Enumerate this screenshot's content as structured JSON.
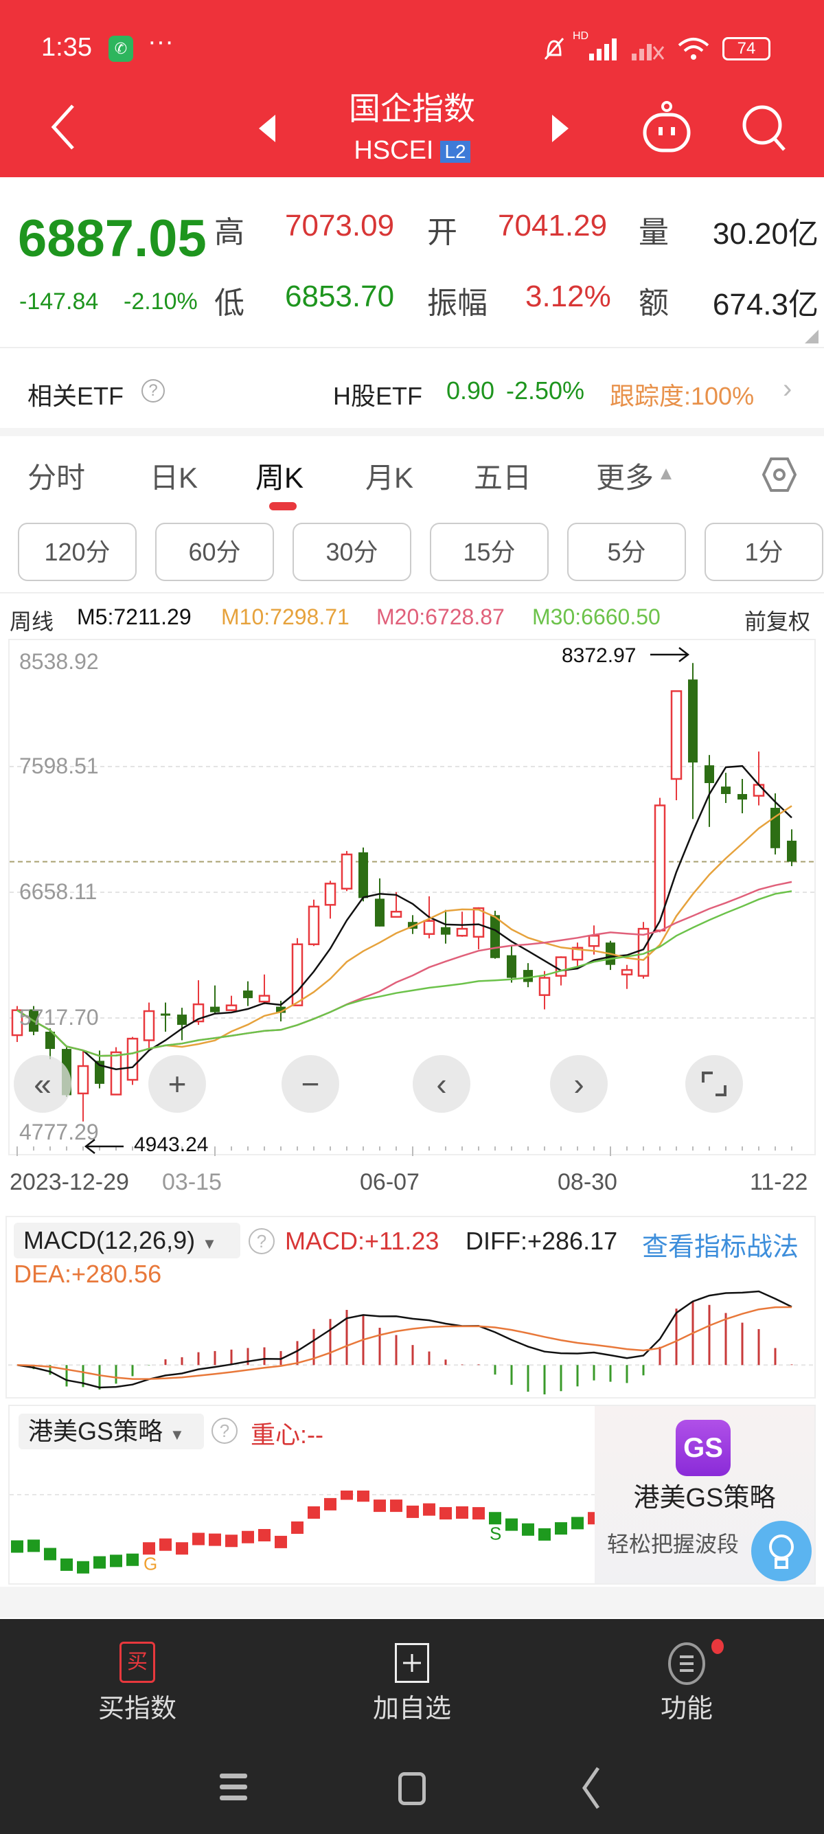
{
  "status": {
    "time": "1:35",
    "battery": "74",
    "network": "HD"
  },
  "header": {
    "title": "国企指数",
    "code": "HSCEI",
    "level": "L2"
  },
  "quote": {
    "price": "6887.05",
    "change": "-147.84",
    "change_pct": "-2.10%",
    "high_label": "高",
    "high": "7073.09",
    "open_label": "开",
    "open": "7041.29",
    "vol_label": "量",
    "vol": "30.20亿",
    "low_label": "低",
    "low": "6853.70",
    "amp_label": "振幅",
    "amp": "3.12%",
    "amt_label": "额",
    "amt": "674.3亿"
  },
  "etf": {
    "label": "相关ETF",
    "name": "H股ETF",
    "price": "0.90",
    "pct": "-2.50%",
    "tracking": "跟踪度:100%"
  },
  "tabs": [
    {
      "label": "分时"
    },
    {
      "label": "日K"
    },
    {
      "label": "周K",
      "active": true
    },
    {
      "label": "月K"
    },
    {
      "label": "五日"
    },
    {
      "label": "更多"
    }
  ],
  "intervals": [
    "120分",
    "60分",
    "30分",
    "15分",
    "5分",
    "1分"
  ],
  "ma_legend": {
    "period": "周线",
    "m5": "M5:7211.29",
    "m10": "M10:7298.71",
    "m20": "M20:6728.87",
    "m30": "M30:6660.50",
    "adjust": "前复权"
  },
  "colors": {
    "up": "#E8383D",
    "down": "#2D6E14",
    "m5": "#111111",
    "m10": "#E6A23C",
    "m20": "#E0607A",
    "m30": "#6CC24A",
    "header": "#EE323A"
  },
  "chart_data": {
    "type": "candlestick",
    "y_ticks": [
      "8538.92",
      "7598.51",
      "6658.11",
      "5717.70",
      "4777.29"
    ],
    "ylim": [
      4777.29,
      8538.92
    ],
    "x_ticks": [
      "2023-12-29",
      "03-15",
      "06-07",
      "08-30",
      "11-22"
    ],
    "max_label": "8372.97",
    "min_label": "4943.24",
    "ohlc": [
      [
        5589,
        5776,
        5807,
        5538
      ],
      [
        5782,
        5615,
        5807,
        5589
      ],
      [
        5615,
        5486,
        5640,
        5409
      ],
      [
        5486,
        5140,
        5499,
        5127
      ],
      [
        5153,
        5358,
        5474,
        4943.24
      ],
      [
        5397,
        5225,
        5474,
        5191
      ],
      [
        5145,
        5461,
        5499,
        5140
      ],
      [
        5255,
        5563,
        5576,
        5217
      ],
      [
        5551,
        5769,
        5833,
        5474
      ],
      [
        5751,
        5735,
        5833,
        5615
      ],
      [
        5743,
        5666,
        5794,
        5551
      ],
      [
        5692,
        5820,
        6000,
        5666
      ],
      [
        5802,
        5761,
        5961,
        5743
      ],
      [
        5776,
        5812,
        5884,
        5769
      ],
      [
        5923,
        5866,
        5992,
        5807
      ],
      [
        5840,
        5884,
        6043,
        5820
      ],
      [
        5802,
        5756,
        5846,
        5692
      ],
      [
        5812,
        6269,
        6315,
        5807
      ],
      [
        6269,
        6551,
        6603,
        6256
      ],
      [
        6564,
        6723,
        6744,
        6461
      ],
      [
        6685,
        6941,
        6967,
        6667
      ],
      [
        6957,
        6615,
        6993,
        6590
      ],
      [
        6610,
        6402,
        6762,
        6402
      ],
      [
        6474,
        6513,
        6659,
        6469
      ],
      [
        6436,
        6385,
        6487,
        6346
      ],
      [
        6346,
        6444,
        6628,
        6313
      ],
      [
        6397,
        6341,
        6526,
        6274
      ],
      [
        6333,
        6385,
        6513,
        6325
      ],
      [
        6325,
        6539,
        6546,
        6231
      ],
      [
        6487,
        6166,
        6520,
        6161
      ],
      [
        6187,
        6018,
        6256,
        5982
      ],
      [
        6077,
        5987,
        6128,
        5948
      ],
      [
        5889,
        6018,
        6069,
        5782
      ],
      [
        6033,
        6172,
        6179,
        5961
      ],
      [
        6154,
        6243,
        6282,
        6090
      ],
      [
        6256,
        6333,
        6410,
        6192
      ],
      [
        6282,
        6115,
        6295,
        6077
      ],
      [
        6043,
        6077,
        6115,
        5935
      ],
      [
        6033,
        6385,
        6436,
        6012
      ],
      [
        6372,
        7308,
        7365,
        6359
      ],
      [
        7506,
        8163,
        8168,
        7347
      ],
      [
        8250,
        7629,
        8372.97,
        7206
      ],
      [
        7608,
        7475,
        7685,
        7147
      ],
      [
        7449,
        7393,
        7552,
        7326
      ],
      [
        7393,
        7352,
        7506,
        7249
      ],
      [
        7380,
        7462,
        7711,
        7308
      ],
      [
        7290,
        6988,
        7398,
        6941
      ],
      [
        7044,
        6887.05,
        7129,
        6853.7
      ]
    ],
    "last_price": 6887.05
  },
  "macd": {
    "selector": "MACD(12,26,9)",
    "macd": "MACD:+11.23",
    "diff": "DIFF:+286.17",
    "dea": "DEA:+280.56",
    "link": "查看指标战法"
  },
  "gs": {
    "selector": "港美GS策略",
    "center": "重心:--",
    "promo_title": "港美GS策略",
    "promo_sub": "轻松把握波段",
    "logo": "GS",
    "levels": [
      90,
      92,
      70,
      42,
      35,
      48,
      52,
      55,
      85,
      95,
      85,
      110,
      108,
      105,
      115,
      120,
      102,
      140,
      180,
      202,
      230,
      225,
      198,
      198,
      182,
      188,
      178,
      180,
      178,
      165,
      148,
      135,
      122,
      138,
      152,
      165
    ],
    "signals": [
      "down",
      "down",
      "down",
      "down",
      "down",
      "down",
      "down",
      "down",
      "up",
      "up",
      "up",
      "up",
      "up",
      "up",
      "up",
      "up",
      "up",
      "up",
      "up",
      "up",
      "up",
      "up",
      "up",
      "up",
      "up",
      "up",
      "up",
      "up",
      "up",
      "down",
      "down",
      "down",
      "down",
      "down",
      "down",
      "up"
    ],
    "marks": [
      {
        "index": 8,
        "text": "G",
        "color": "#F0A030"
      },
      {
        "index": 29,
        "text": "S",
        "color": "#1E951E"
      }
    ]
  },
  "bottom_nav": [
    {
      "label": "买指数",
      "icon": "买"
    },
    {
      "label": "加自选"
    },
    {
      "label": "功能"
    }
  ]
}
